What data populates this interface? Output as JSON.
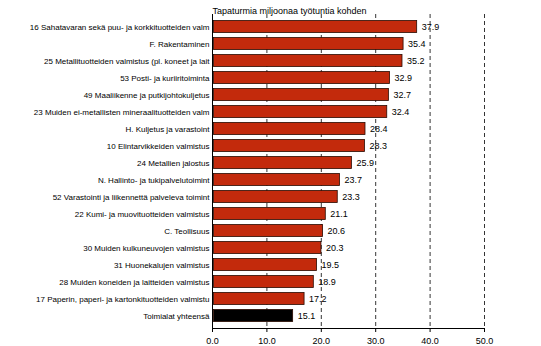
{
  "chart_data": {
    "type": "bar",
    "orientation": "horizontal",
    "title": "Tapaturmia miljoonaa työtuntia kohden",
    "categories": [
      "16 Sahatavaran sekä puu- ja korkkituotteiden valm",
      "F. Rakentaminen",
      "25 Metallituotteiden valmistus (pl. koneet ja lait",
      "53 Posti- ja kuriiritoiminta",
      "49 Maaliikenne ja putkijohtokuljetus",
      "23 Muiden ei-metallisten mineraalituotteiden valm",
      "H. Kuljetus ja varastoint",
      "10 Elintarvikkeiden valmistus",
      "24 Metallien jalostus",
      "N. Hallinto- ja tukipalvelutoimint",
      "52 Varastointi ja liikennettä palveleva toimint",
      "22 Kumi- ja muovituotteiden valmistus",
      "C. Teollisuus",
      "30 Muiden kulkuneuvojen valmistus",
      "31 Huonekalujen valmistus",
      "28 Muiden koneiden ja laitteiden valmistus",
      "17 Paperin, paperi- ja kartonkituotteiden valmistu",
      "Toimialat yhteensä"
    ],
    "values": [
      37.9,
      35.4,
      35.2,
      32.9,
      32.7,
      32.4,
      28.4,
      28.3,
      25.9,
      23.7,
      23.3,
      21.1,
      20.6,
      20.3,
      19.5,
      18.9,
      17.2,
      15.1
    ],
    "colors": [
      "#c32a0c",
      "#c32a0c",
      "#c32a0c",
      "#c32a0c",
      "#c32a0c",
      "#c32a0c",
      "#c32a0c",
      "#c32a0c",
      "#c32a0c",
      "#c32a0c",
      "#c32a0c",
      "#c32a0c",
      "#c32a0c",
      "#c32a0c",
      "#c32a0c",
      "#c32a0c",
      "#c32a0c",
      "#000000"
    ],
    "xlim": [
      0,
      50
    ],
    "xticks": [
      {
        "value": 0,
        "label": "0.0"
      },
      {
        "value": 10,
        "label": "10.0"
      },
      {
        "value": 20,
        "label": "20.0"
      },
      {
        "value": 30,
        "label": "30.0"
      },
      {
        "value": 40,
        "label": "40.0"
      },
      {
        "value": 50,
        "label": "50.0"
      }
    ],
    "grid": true,
    "data_labels": true
  }
}
